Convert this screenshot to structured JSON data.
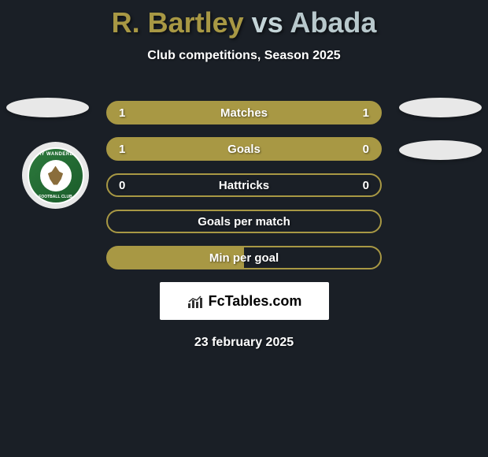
{
  "background_color": "#1a1f26",
  "title": {
    "player1": "R. Bartley",
    "vs": "vs",
    "player2": "Abada",
    "color_player1": "#a89844",
    "color_vs": "#c4d4d8",
    "color_player2": "#b8c8cc"
  },
  "subtitle": "Club competitions, Season 2025",
  "stats": [
    {
      "label": "Matches",
      "left_value": "1",
      "right_value": "1",
      "fill_left": true,
      "fill_right": true,
      "border_color": "#a89844",
      "fill_color": "#a89844"
    },
    {
      "label": "Goals",
      "left_value": "1",
      "right_value": "0",
      "fill_left": true,
      "fill_right": false,
      "border_color": "#a89844",
      "fill_color": "#a89844"
    },
    {
      "label": "Hattricks",
      "left_value": "0",
      "right_value": "0",
      "fill_left": false,
      "fill_right": false,
      "border_color": "#a89844",
      "fill_color": "#a89844"
    },
    {
      "label": "Goals per match",
      "left_value": "",
      "right_value": "",
      "fill_left": false,
      "fill_right": false,
      "border_color": "#a89844",
      "fill_color": "#a89844"
    },
    {
      "label": "Min per goal",
      "left_value": "",
      "right_value": "",
      "fill_left": true,
      "fill_right": false,
      "border_color": "#a89844",
      "fill_color": "#a89844",
      "half_fill": true
    }
  ],
  "badge": {
    "team_name_top": "BRAY WANDERERS",
    "team_name_bottom": "FOOTBALL CLUB",
    "primary_color": "#2d7a3d"
  },
  "footer": {
    "logo_text": "FcTables.com"
  },
  "date": "23 february 2025"
}
